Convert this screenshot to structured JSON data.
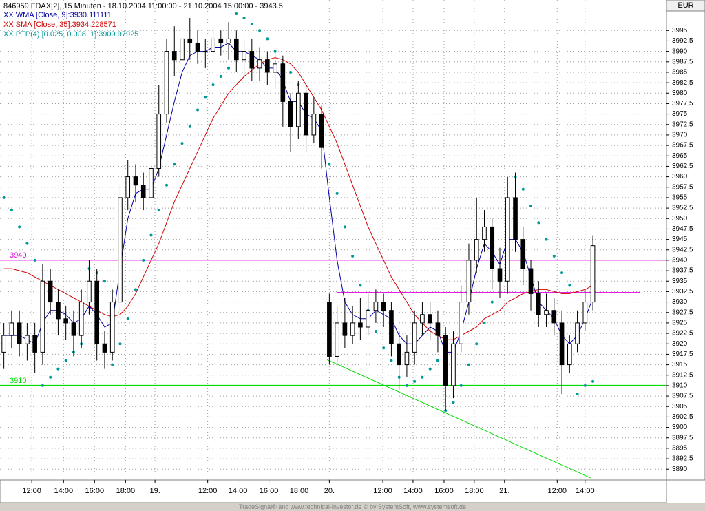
{
  "header": {
    "currency": "EUR"
  },
  "footer": "TradeSignal® and www.technical-investor.de © by SystemSoft, www.systemsoft.de",
  "chart_data": {
    "type": "candlestick",
    "title": "846959  FDAX[2], 15 Minuten - 18.10.2004 11:00:00 - 21.10.2004 15:00:00 - 3943.5",
    "x": [
      0,
      1,
      2,
      3,
      4,
      5,
      6,
      7,
      8,
      9,
      10,
      11,
      12,
      13,
      14,
      15,
      16,
      17,
      18,
      19,
      20,
      21,
      22,
      23,
      24,
      25,
      26,
      27,
      28,
      29,
      30,
      31,
      32,
      33,
      34,
      35,
      36,
      37,
      38,
      39,
      40,
      41,
      42,
      43,
      44,
      45,
      46,
      47,
      48,
      49,
      50,
      51,
      52,
      53,
      54,
      55,
      56,
      57,
      58,
      59,
      60,
      61,
      62,
      63,
      64,
      65,
      66,
      67,
      68,
      69,
      70,
      71,
      72,
      73,
      74,
      75,
      76
    ],
    "open": [
      3918,
      3922,
      3925,
      3920,
      3922,
      3918,
      3935,
      3930,
      3926,
      3925,
      3922,
      3930,
      3935,
      3920,
      3918,
      3930,
      3955,
      3960,
      3958,
      3955,
      3962,
      3975,
      3990,
      3988,
      3993,
      3992,
      3990,
      3990,
      3993,
      3992,
      3993,
      3988,
      3990,
      3986,
      3988,
      3985,
      3987,
      3978,
      3972,
      3980,
      3970,
      3975,
      3930,
      3917,
      3925,
      3922,
      3925,
      3924,
      3928,
      3930,
      3928,
      3920,
      3915,
      3918,
      3925,
      3927,
      3925,
      3922,
      3910,
      3920,
      3930,
      3940,
      3945,
      3948,
      3938,
      3935,
      3955,
      3945,
      3938,
      3932,
      3927,
      3928,
      3925,
      3915,
      3920,
      3925,
      3930
    ],
    "high": [
      3925,
      3928,
      3928,
      3925,
      3925,
      3939,
      3938,
      3933,
      3929,
      3928,
      3933,
      3940,
      3938,
      3923,
      3933,
      3958,
      3964,
      3963,
      3961,
      3966,
      3982,
      3993,
      3996,
      3997,
      3998,
      3995,
      3993,
      3996,
      3995,
      3997,
      3995,
      3993,
      3993,
      3991,
      3990,
      3990,
      3989,
      3980,
      3983,
      3982,
      3979,
      3977,
      3932,
      3929,
      3931,
      3929,
      3931,
      3932,
      3933,
      3932,
      3930,
      3923,
      3922,
      3928,
      3930,
      3930,
      3928,
      3924,
      3923,
      3934,
      3944,
      3955,
      3952,
      3950,
      3943,
      3960,
      3961,
      3948,
      3940,
      3935,
      3932,
      3931,
      3928,
      3922,
      3928,
      3933,
      3946
    ],
    "low": [
      3914,
      3919,
      3917,
      3916,
      3913,
      3915,
      3927,
      3922,
      3921,
      3917,
      3919,
      3927,
      3916,
      3914,
      3916,
      3928,
      3952,
      3954,
      3952,
      3953,
      3960,
      3973,
      3984,
      3986,
      3988,
      3987,
      3986,
      3988,
      3989,
      3988,
      3985,
      3984,
      3983,
      3983,
      3982,
      3981,
      3972,
      3966,
      3969,
      3966,
      3968,
      3962,
      3915,
      3915,
      3919,
      3920,
      3921,
      3922,
      3925,
      3924,
      3917,
      3909,
      3912,
      3915,
      3922,
      3921,
      3918,
      3904,
      3907,
      3918,
      3927,
      3937,
      3942,
      3933,
      3931,
      3932,
      3942,
      3934,
      3928,
      3924,
      3924,
      3922,
      3908,
      3913,
      3918,
      3923,
      3928
    ],
    "close": [
      3922,
      3925,
      3920,
      3922,
      3918,
      3935,
      3930,
      3926,
      3925,
      3922,
      3930,
      3935,
      3920,
      3918,
      3930,
      3955,
      3960,
      3958,
      3955,
      3962,
      3975,
      3990,
      3988,
      3993,
      3992,
      3990,
      3990,
      3993,
      3992,
      3993,
      3988,
      3990,
      3986,
      3988,
      3985,
      3987,
      3978,
      3972,
      3980,
      3970,
      3975,
      3967,
      3917,
      3925,
      3922,
      3925,
      3924,
      3928,
      3930,
      3928,
      3920,
      3915,
      3918,
      3925,
      3927,
      3925,
      3922,
      3910,
      3920,
      3930,
      3940,
      3945,
      3948,
      3938,
      3935,
      3955,
      3945,
      3938,
      3932,
      3927,
      3928,
      3925,
      3915,
      3920,
      3925,
      3930,
      3943.5
    ],
    "up_color": "#ffffff",
    "down_color": "#000000",
    "outline_color": "#000000",
    "series": [
      {
        "name": "XX WMA [Close, 9]:3930.111111",
        "color": "#0000a0",
        "style": "line",
        "values": [
          3922,
          3922,
          3922,
          3921,
          3920,
          3925,
          3928,
          3928,
          3927,
          3925,
          3926,
          3929,
          3927,
          3924,
          3925,
          3938,
          3950,
          3956,
          3957,
          3957,
          3962,
          3970,
          3978,
          3985,
          3989,
          3990,
          3990,
          3991,
          3991,
          3992,
          3990,
          3990,
          3989,
          3988,
          3986,
          3986,
          3983,
          3978,
          3978,
          3975,
          3974,
          3971,
          3955,
          3940,
          3930,
          3927,
          3926,
          3926,
          3928,
          3927,
          3926,
          3922,
          3920,
          3920,
          3922,
          3924,
          3923,
          3918,
          3918,
          3923,
          3930,
          3938,
          3944,
          3942,
          3939,
          3945,
          3945,
          3942,
          3936,
          3930,
          3928,
          3926,
          3922,
          3920,
          3922,
          3926,
          3931
        ]
      },
      {
        "name": "XX SMA [Close, 35]:3934.228571",
        "color": "#d00000",
        "style": "line",
        "values": [
          3938,
          3938,
          3937.5,
          3937,
          3936,
          3935,
          3934,
          3933,
          3932,
          3931,
          3930,
          3929,
          3928,
          3927,
          3926.5,
          3927,
          3929,
          3932,
          3936,
          3940,
          3944,
          3949,
          3954,
          3958,
          3962,
          3966,
          3970,
          3974,
          3977,
          3980,
          3982,
          3984,
          3985.5,
          3987,
          3988,
          3988.5,
          3988,
          3987,
          3985,
          3982,
          3979,
          3976,
          3972,
          3968,
          3963,
          3958,
          3953,
          3948,
          3944,
          3940,
          3936,
          3933,
          3930,
          3927,
          3925,
          3923,
          3922,
          3921,
          3921,
          3922,
          3923,
          3924,
          3926,
          3927,
          3928,
          3930,
          3931,
          3932,
          3932.5,
          3933,
          3933,
          3932.5,
          3932,
          3932,
          3932.5,
          3933,
          3934
        ]
      },
      {
        "name": "XX PTP(4) [0.025, 0.008, 1]:3909.97925",
        "color": "#009999",
        "style": "dots",
        "values": [
          3955,
          3952,
          3948,
          3944,
          3940,
          3910,
          3912,
          3914,
          3916,
          3918,
          3920,
          3938,
          3937,
          3935,
          3915,
          3920,
          3926,
          3933,
          3940,
          3946,
          3952,
          3958,
          3963,
          3968,
          3972,
          3976,
          3979,
          3982,
          3984,
          3986,
          3999,
          3998,
          3996.5,
          3995,
          3993,
          3990,
          3987,
          3985,
          3982,
          3978,
          3974,
          3969,
          3963,
          3956,
          3948,
          3941,
          3934,
          3928,
          3923,
          3919,
          3916,
          3912,
          3910,
          3911,
          3912,
          3914,
          3916,
          3904,
          3906,
          3910,
          3915,
          3920,
          3925,
          3930,
          3935,
          3938,
          3960,
          3957,
          3953,
          3949,
          3945,
          3941,
          3937,
          3934,
          3908,
          3910,
          3911
        ]
      }
    ],
    "hlines": [
      {
        "value": 3940,
        "label": "3940",
        "color": "#e000e0",
        "width": 1
      },
      {
        "value": 3910,
        "label": "3910",
        "color": "#00dd00",
        "width": 2
      }
    ],
    "lines": [
      {
        "x": [
          43,
          82.1
        ],
        "values": [
          3932.3,
          3932.3
        ],
        "color": "#e000e0"
      },
      {
        "x": [
          41.7,
          75.7
        ],
        "values": [
          3916.2,
          3887.9
        ],
        "color": "#00dd00"
      }
    ],
    "xlim": [
      -0.5,
      85.5
    ],
    "ylim": [
      3887.4,
      4002.3
    ],
    "xticks": [
      {
        "value": 3.6,
        "label": "12:00"
      },
      {
        "value": 7.7,
        "label": "14:00"
      },
      {
        "value": 11.7,
        "label": "16:00"
      },
      {
        "value": 15.7,
        "label": "18:00"
      },
      {
        "value": 19.5,
        "label": "19."
      },
      {
        "value": 26.3,
        "label": "12:00"
      },
      {
        "value": 30.2,
        "label": "14:00"
      },
      {
        "value": 34.2,
        "label": "16:00"
      },
      {
        "value": 38.1,
        "label": "18:00"
      },
      {
        "value": 42.0,
        "label": "20."
      },
      {
        "value": 48.9,
        "label": "12:00"
      },
      {
        "value": 52.8,
        "label": "14:00"
      },
      {
        "value": 56.8,
        "label": "16:00"
      },
      {
        "value": 60.7,
        "label": "18:00"
      },
      {
        "value": 64.6,
        "label": "21."
      },
      {
        "value": 71.4,
        "label": "12:00"
      },
      {
        "value": 75.0,
        "label": "14:00"
      }
    ],
    "yticks": [
      3890,
      {
        "value": 3892.5,
        "label": "3892,5"
      },
      3895,
      {
        "value": 3897.5,
        "label": "3897,5"
      },
      3900,
      {
        "value": 3902.5,
        "label": "3902,5"
      },
      3905,
      {
        "value": 3907.5,
        "label": "3907,5"
      },
      3910,
      {
        "value": 3912.5,
        "label": "3912,5"
      },
      3915,
      {
        "value": 3917.5,
        "label": "3917,5"
      },
      3920,
      {
        "value": 3922.5,
        "label": "3922,5"
      },
      3925,
      {
        "value": 3927.5,
        "label": "3927,5"
      },
      3930,
      {
        "value": 3932.5,
        "label": "3932,5"
      },
      3935,
      {
        "value": 3937.5,
        "label": "3937,5"
      },
      3940,
      {
        "value": 3942.5,
        "label": "3942,5"
      },
      3945,
      {
        "value": 3947.5,
        "label": "3947,5"
      },
      3950,
      {
        "value": 3952.5,
        "label": "3952,5"
      },
      3955,
      {
        "value": 3957.5,
        "label": "3957,5"
      },
      3960,
      {
        "value": 3962.5,
        "label": "3962,5"
      },
      3965,
      {
        "value": 3967.5,
        "label": "3967,5"
      },
      3970,
      {
        "value": 3972.5,
        "label": "3972,5"
      },
      3975,
      {
        "value": 3977.5,
        "label": "3977,5"
      },
      3980,
      {
        "value": 3982.5,
        "label": "3982,5"
      },
      3985,
      {
        "value": 3987.5,
        "label": "3987,5"
      },
      3990,
      {
        "value": 3992.5,
        "label": "3992,5"
      },
      3995
    ],
    "grid": true
  }
}
